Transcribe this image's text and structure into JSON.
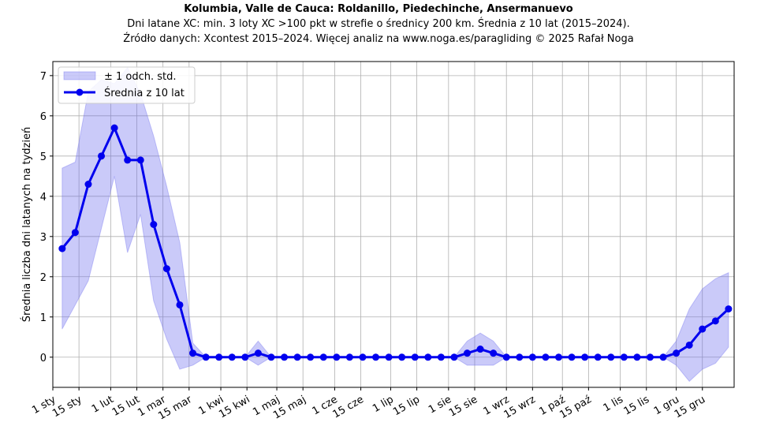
{
  "chart_data": {
    "type": "line",
    "title": "Kolumbia, Valle de Cauca: Roldanillo, Piedechinche, Ansermanuevo",
    "subtitle_line1": "Dni latane XC: min. 3 loty XC >100 pkt w strefie o średnicy 200 km. Średnia z 10 lat (2015–2024).",
    "subtitle_line2": "Źródło danych: Xcontest 2015–2024. Więcej analiz na www.noga.es/paragliding © 2025 Rafał Noga",
    "ylabel": "Średnia liczba dni latanych na tydzień",
    "xlabel": "",
    "ylim": [
      -0.75,
      7.35
    ],
    "yticks": [
      0,
      1,
      2,
      3,
      4,
      5,
      6,
      7
    ],
    "xlim": [
      1,
      366
    ],
    "xtick_days": [
      1,
      15,
      32,
      46,
      60,
      74,
      91,
      105,
      121,
      135,
      152,
      166,
      182,
      196,
      213,
      227,
      244,
      258,
      274,
      288,
      305,
      319,
      335,
      349
    ],
    "xtick_labels": [
      "1 sty",
      "15 sty",
      "1 lut",
      "15 lut",
      "1 mar",
      "15 mar",
      "1 kwi",
      "15 kwi",
      "1 maj",
      "15 maj",
      "1 cze",
      "15 cze",
      "1 lip",
      "15 lip",
      "1 sie",
      "15 sie",
      "1 wrz",
      "15 wrz",
      "1 paź",
      "15 paź",
      "1 lis",
      "15 lis",
      "1 gru",
      "15 gru"
    ],
    "grid": true,
    "legend_position": "top-left",
    "x": [
      6,
      13,
      20,
      27,
      34,
      41,
      48,
      55,
      62,
      69,
      76,
      83,
      90,
      97,
      104,
      111,
      118,
      125,
      132,
      139,
      146,
      153,
      160,
      167,
      174,
      181,
      188,
      195,
      202,
      209,
      216,
      223,
      230,
      237,
      244,
      251,
      258,
      265,
      272,
      279,
      286,
      293,
      300,
      307,
      314,
      321,
      328,
      335,
      342,
      349,
      356,
      363
    ],
    "series": [
      {
        "name": "Średnia z 10 lat",
        "color": "#0000ee",
        "values": [
          2.7,
          3.1,
          4.3,
          5.0,
          5.7,
          4.9,
          4.9,
          3.3,
          2.2,
          1.3,
          0.1,
          0.0,
          0.0,
          0.0,
          0.0,
          0.1,
          0.0,
          0.0,
          0.0,
          0.0,
          0.0,
          0.0,
          0.0,
          0.0,
          0.0,
          0.0,
          0.0,
          0.0,
          0.0,
          0.0,
          0.0,
          0.1,
          0.2,
          0.1,
          0.0,
          0.0,
          0.0,
          0.0,
          0.0,
          0.0,
          0.0,
          0.0,
          0.0,
          0.0,
          0.0,
          0.0,
          0.0,
          0.1,
          0.3,
          0.7,
          0.9,
          1.2
        ]
      },
      {
        "name": "± 1 odch. std.",
        "color": "#6666ee",
        "upper": [
          4.7,
          4.85,
          6.6,
          6.9,
          6.8,
          7.2,
          6.55,
          5.5,
          4.25,
          2.85,
          0.35,
          0.0,
          0.0,
          0.0,
          0.0,
          0.4,
          0.0,
          0.0,
          0.0,
          0.0,
          0.0,
          0.0,
          0.0,
          0.0,
          0.0,
          0.0,
          0.0,
          0.0,
          0.0,
          0.0,
          0.0,
          0.4,
          0.6,
          0.4,
          0.0,
          0.0,
          0.0,
          0.0,
          0.0,
          0.0,
          0.0,
          0.0,
          0.0,
          0.0,
          0.0,
          0.0,
          0.0,
          0.4,
          1.2,
          1.7,
          1.95,
          2.1
        ],
        "lower": [
          0.7,
          1.3,
          1.9,
          3.2,
          4.5,
          2.6,
          3.55,
          1.4,
          0.45,
          -0.3,
          -0.2,
          0.0,
          0.0,
          0.0,
          0.0,
          -0.2,
          0.0,
          0.0,
          0.0,
          0.0,
          0.0,
          0.0,
          0.0,
          0.0,
          0.0,
          0.0,
          0.0,
          0.0,
          0.0,
          0.0,
          0.0,
          -0.2,
          -0.2,
          -0.2,
          0.0,
          0.0,
          0.0,
          0.0,
          0.0,
          0.0,
          0.0,
          0.0,
          0.0,
          0.0,
          0.0,
          0.0,
          0.0,
          -0.2,
          -0.6,
          -0.3,
          -0.15,
          0.25
        ]
      }
    ]
  }
}
